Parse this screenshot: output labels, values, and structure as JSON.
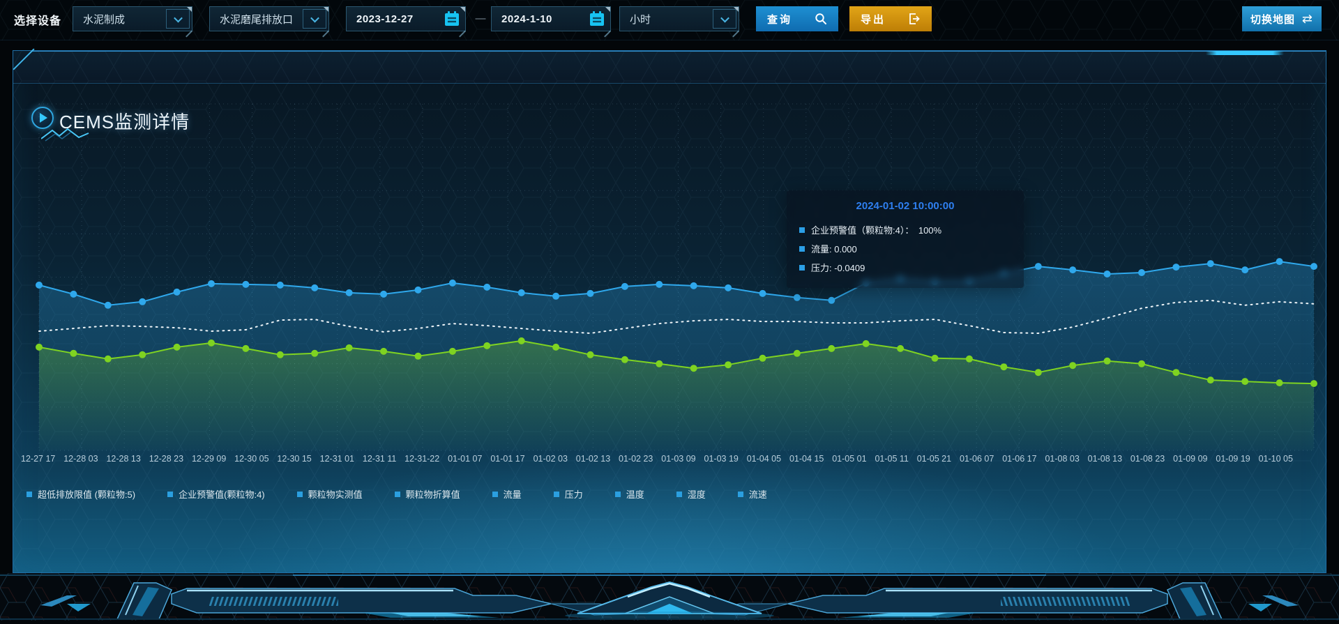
{
  "toolbar": {
    "device_label": "选择设备",
    "device_select": {
      "value": "水泥制成"
    },
    "outlet_select": {
      "value": "水泥磨尾排放口"
    },
    "date_start": "2023-12-27",
    "date_separator": "—",
    "date_end": "2024-1-10",
    "interval_select": {
      "value": "小时"
    },
    "query_button": "查询",
    "export_button": "导出",
    "switch_map_button": "切换地图",
    "switch_map_icon": "⇄"
  },
  "panel": {
    "title": "CEMS监测详情"
  },
  "tooltip": {
    "title": "2024-01-02 10:00:00",
    "title_color": "#2e7ff0",
    "marker_color": "#2b9fe6",
    "rows": [
      "企业预警值（颗粒物:4）：　100%",
      "流量: 0.000",
      "压力: -0.0409"
    ]
  },
  "colors": {
    "accent_cyan": "#35c8ff",
    "query_blue": "#1486cc",
    "export_orange": "#d9941a",
    "panel_border": "#1f6ea6",
    "legend_marker": "#2b9fe0",
    "grid": "rgba(140,185,215,0.22)"
  },
  "chart_data": {
    "type": "line",
    "title": "",
    "xlabel": "",
    "ylabel": "",
    "ylim": [
      0,
      100
    ],
    "grid": true,
    "legend_position": "bottom",
    "x_labels": [
      "12-27 17",
      "12-28 03",
      "12-28 13",
      "12-28 23",
      "12-29 09",
      "12-30 05",
      "12-30 15",
      "12-31 01",
      "12-31 11",
      "12-31-22",
      "01-01 07",
      "01-01 17",
      "01-02 03",
      "01-02 13",
      "01-02 23",
      "01-03 09",
      "01-03 19",
      "01-04 05",
      "01-04 15",
      "01-05 01",
      "01-05 11",
      "01-05 21",
      "01-06 07",
      "01-06 17",
      "01-08 03",
      "01-08 13",
      "01-08 23",
      "01-09 09",
      "01-09 19",
      "01-10 05"
    ],
    "legend": [
      "超低排放限值 (颗粒物:5)",
      "企业预警值(颗粒物:4)",
      "颗粒物实测值",
      "颗粒物折算值",
      "流量",
      "压力",
      "温度",
      "湿度",
      "流速"
    ],
    "series": [
      {
        "name": "颗粒物实测值",
        "color": "#2fa8ec",
        "style": "solid",
        "dots": true,
        "area": true,
        "values": [
          47.7,
          45.1,
          41.9,
          42.9,
          45.7,
          48.1,
          47.9,
          47.7,
          46.9,
          45.5,
          45.1,
          46.3,
          48.3,
          47.1,
          45.5,
          44.5,
          45.3,
          47.3,
          47.9,
          47.5,
          46.9,
          45.3,
          44.1,
          43.3,
          48.3,
          49.5,
          48.7,
          48.9,
          51.1,
          53.1,
          52.1,
          50.9,
          51.3,
          52.9,
          53.9,
          52.1,
          54.5,
          53.1
        ]
      },
      {
        "name": "超低排放限值 (颗粒物:5)",
        "color": "#eef4f8",
        "style": "dotted",
        "dots": false,
        "area": false,
        "values": [
          34.4,
          35.2,
          36.0,
          35.8,
          35.4,
          34.4,
          34.8,
          37.6,
          37.8,
          35.8,
          34.2,
          35.2,
          36.6,
          36.0,
          35.2,
          34.4,
          33.8,
          35.2,
          36.6,
          37.4,
          37.8,
          37.2,
          37.2,
          36.8,
          36.8,
          37.4,
          37.8,
          36.0,
          34.0,
          33.8,
          35.6,
          38.2,
          41.0,
          42.7,
          43.3,
          41.9,
          42.9,
          42.3
        ]
      },
      {
        "name": "颗粒物折算值",
        "color": "#7fd321",
        "style": "solid",
        "dots": true,
        "area": true,
        "values": [
          29.8,
          28.0,
          26.4,
          27.6,
          29.8,
          31.0,
          29.4,
          27.6,
          28.0,
          29.6,
          28.6,
          27.2,
          28.6,
          30.2,
          31.6,
          29.8,
          27.6,
          26.2,
          25.0,
          23.7,
          24.7,
          26.6,
          28.0,
          29.4,
          30.8,
          29.4,
          26.6,
          26.4,
          24.1,
          22.5,
          24.5,
          25.8,
          25.0,
          22.5,
          20.3,
          19.9,
          19.5,
          19.3
        ]
      }
    ]
  }
}
